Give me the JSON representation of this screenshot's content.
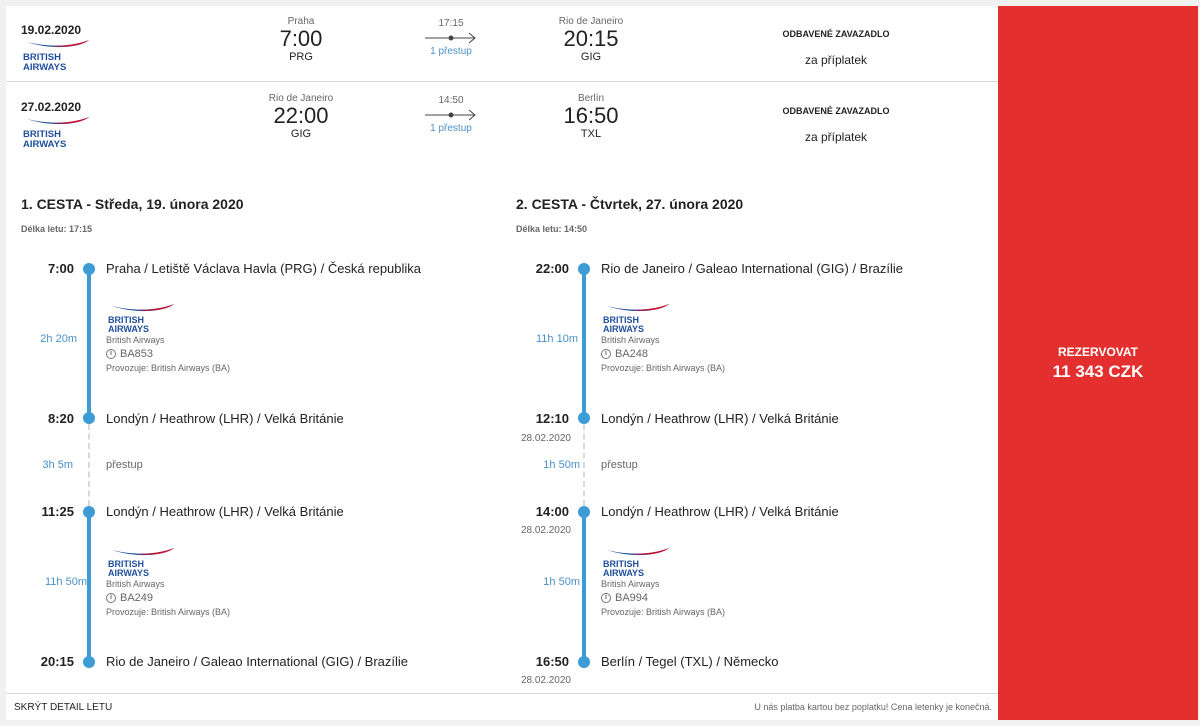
{
  "summary": [
    {
      "date": "19.02.2020",
      "airline": "BRITISH AIRWAYS",
      "dep_city": "Praha",
      "dep_time": "7:00",
      "dep_code": "PRG",
      "duration": "17:15",
      "stops": "1 přestup",
      "arr_city": "Rio de Janeiro",
      "arr_time": "20:15",
      "arr_code": "GIG",
      "baggage_title": "ODBAVENÉ ZAVAZADLO",
      "baggage_note": "za příplatek"
    },
    {
      "date": "27.02.2020",
      "airline": "BRITISH AIRWAYS",
      "dep_city": "Rio de Janeiro",
      "dep_time": "22:00",
      "dep_code": "GIG",
      "duration": "14:50",
      "stops": "1 přestup",
      "arr_city": "Berlín",
      "arr_time": "16:50",
      "arr_code": "TXL",
      "baggage_title": "ODBAVENÉ ZAVAZADLO",
      "baggage_note": "za příplatek"
    }
  ],
  "booking": {
    "label": "REZERVOVAT",
    "price": "11 343 CZK"
  },
  "legs": [
    {
      "title": "1. CESTA - Středa, 19. února 2020",
      "duration": "Délka letu: 17:15",
      "stations": [
        {
          "time": "7:00",
          "date": "",
          "name": "Praha / Letiště Václava Havla (PRG) / Česká republika"
        },
        {
          "time": "8:20",
          "date": "",
          "name": "Londýn / Heathrow (LHR) / Velká Británie"
        },
        {
          "time": "11:25",
          "date": "",
          "name": "Londýn / Heathrow (LHR) / Velká Británie"
        },
        {
          "time": "20:15",
          "date": "",
          "name": "Rio de Janeiro / Galeao International (GIG) / Brazílie"
        }
      ],
      "segments": [
        {
          "duration": "2h 20m",
          "airline": "British Airways",
          "flight": "BA853",
          "operated": "Provozuje: British Airways (BA)"
        },
        {
          "duration": "11h 50m",
          "airline": "British Airways",
          "flight": "BA249",
          "operated": "Provozuje: British Airways (BA)"
        }
      ],
      "transfer": {
        "duration": "3h 5m",
        "label": "přestup"
      }
    },
    {
      "title": "2. CESTA - Čtvrtek, 27. února 2020",
      "duration": "Délka letu: 14:50",
      "stations": [
        {
          "time": "22:00",
          "date": "",
          "name": "Rio de Janeiro / Galeao International (GIG) / Brazílie"
        },
        {
          "time": "12:10",
          "date": "28.02.2020",
          "name": "Londýn / Heathrow (LHR) / Velká Británie"
        },
        {
          "time": "14:00",
          "date": "28.02.2020",
          "name": "Londýn / Heathrow (LHR) / Velká Británie"
        },
        {
          "time": "16:50",
          "date": "28.02.2020",
          "name": "Berlín / Tegel (TXL) / Německo"
        }
      ],
      "segments": [
        {
          "duration": "11h 10m",
          "airline": "British Airways",
          "flight": "BA248",
          "operated": "Provozuje: British Airways (BA)"
        },
        {
          "duration": "1h 50m",
          "airline": "British Airways",
          "flight": "BA994",
          "operated": "Provozuje: British Airways (BA)"
        }
      ],
      "transfer": {
        "duration": "1h 50m",
        "label": "přestup"
      }
    }
  ],
  "footer": {
    "hide_detail": "SKRÝT DETAIL LETU",
    "note": "U nás platba kartou bez poplatku! Cena letenky je konečná."
  },
  "colors": {
    "accent": "#3d9bd6",
    "book": "#e3302f",
    "ba_blue": "#1f4f9c",
    "ba_red": "#c8102e"
  },
  "icons": {
    "airline_logo": "british-airways-logo",
    "info": "info-icon",
    "arrow": "route-arrow-icon"
  }
}
